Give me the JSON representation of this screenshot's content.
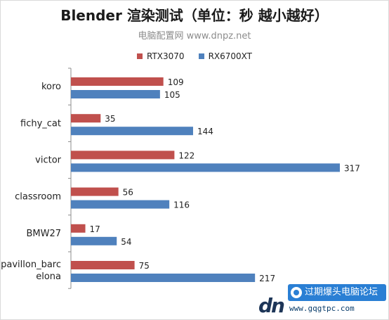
{
  "title": "Blender 渲染测试（单位：秒 越小越好）",
  "subtitle": "电脑配置网 www.dnpz.net",
  "colors": {
    "rtx": "#c0504d",
    "rx": "#4f81bd"
  },
  "watermark": {
    "banner": "过期爆头电脑论坛",
    "url": "www.gqgtpc.com",
    "logo": "dn"
  },
  "chart_data": {
    "type": "bar",
    "orientation": "horizontal",
    "categories": [
      "koro",
      "fichy_cat",
      "victor",
      "classroom",
      "BMW27",
      "pavillon_barcelona"
    ],
    "category_labels": [
      [
        "koro"
      ],
      [
        "fichy_cat"
      ],
      [
        "victor"
      ],
      [
        "classroom"
      ],
      [
        "BMW27"
      ],
      [
        "pavillon_barc",
        "elona"
      ]
    ],
    "series": [
      {
        "name": "RTX3070",
        "color": "#c0504d",
        "values": [
          109,
          35,
          122,
          56,
          17,
          75
        ]
      },
      {
        "name": "RX6700XT",
        "color": "#4f81bd",
        "values": [
          105,
          144,
          317,
          116,
          54,
          217
        ]
      }
    ],
    "xlim": [
      0,
      317
    ],
    "legend": "top",
    "grid": false
  }
}
